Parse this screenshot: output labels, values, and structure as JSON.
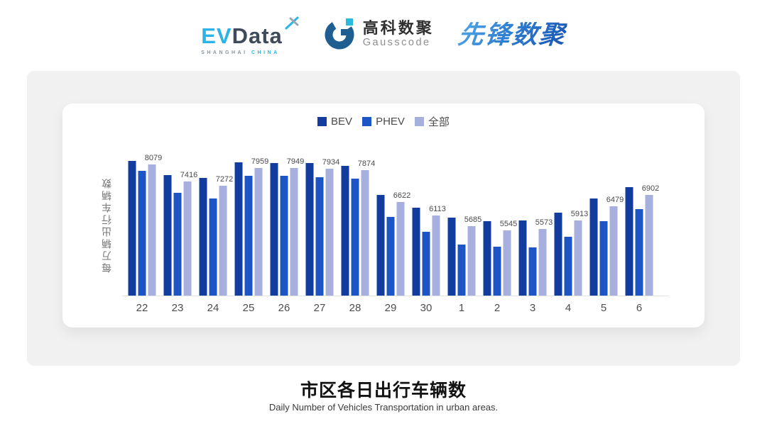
{
  "header": {
    "evdata": {
      "ev": "EV",
      "data": "Data",
      "shanghai": "SHANGHAI",
      "china": "CHINA"
    },
    "gausscode": {
      "cn": "高科数聚",
      "en": "Gausscode"
    },
    "xianfeng": "先锋数聚"
  },
  "chart_data": {
    "type": "bar",
    "title": "市区各日出行车辆数",
    "subtitle": "Daily Number of Vehicles Transportation in urban areas.",
    "ylabel": "每万辆出行车辆数",
    "xlabel": "",
    "grid": false,
    "legend_position": "top-center",
    "ylim": [
      3000,
      8500
    ],
    "categories": [
      "22",
      "23",
      "24",
      "25",
      "26",
      "27",
      "28",
      "29",
      "30",
      "1",
      "2",
      "3",
      "4",
      "5",
      "6"
    ],
    "legend": [
      "BEV",
      "PHEV",
      "全部"
    ],
    "series": [
      {
        "name": "BEV",
        "color": "#123c9d",
        "values": [
          8240,
          7670,
          7570,
          8160,
          8150,
          8150,
          8040,
          6900,
          6410,
          6020,
          5880,
          5910,
          6210,
          6780,
          7200
        ]
      },
      {
        "name": "PHEV",
        "color": "#1e55c5",
        "values": [
          7850,
          7000,
          6780,
          7650,
          7650,
          7600,
          7540,
          6060,
          5470,
          4990,
          4900,
          4870,
          5290,
          5890,
          6350
        ]
      },
      {
        "name": "全部",
        "color": "#a6afde",
        "values": [
          8079,
          7416,
          7272,
          7959,
          7949,
          7934,
          7874,
          6622,
          6113,
          5685,
          5545,
          5573,
          5913,
          6479,
          6902
        ]
      }
    ],
    "value_labels": [
      "8079",
      "7416",
      "7272",
      "7959",
      "7949",
      "7934",
      "7874",
      "6622",
      "6113",
      "5685",
      "5545",
      "5573",
      "5913",
      "6479",
      "6902"
    ]
  },
  "footer": {
    "title": "市区各日出行车辆数",
    "subtitle": "Daily Number of Vehicles Transportation in urban areas."
  }
}
